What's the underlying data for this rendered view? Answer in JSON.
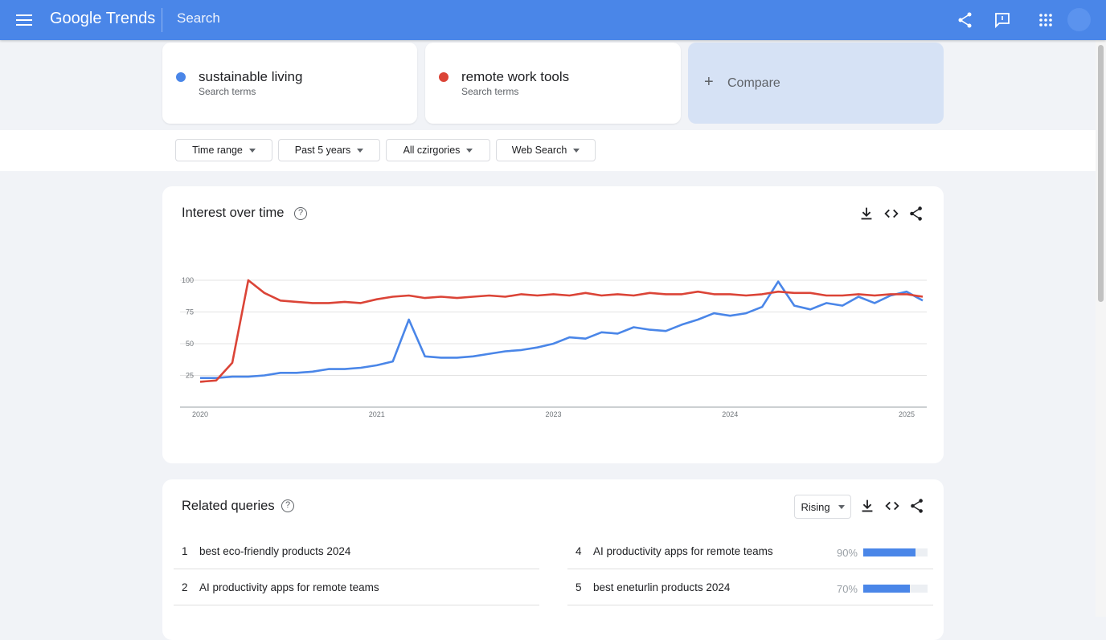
{
  "header": {
    "brand": "Google Trends",
    "search_label": "Search"
  },
  "terms": [
    {
      "name": "sustainable living",
      "sub": "Search terms",
      "color": "#4a86e8"
    },
    {
      "name": "remote work tools",
      "sub": "Search terms",
      "color": "#db4437"
    }
  ],
  "compare_label": "Compare",
  "filters": [
    "Time range",
    "Past 5 years",
    "All czirgories",
    "Web Search"
  ],
  "interest": {
    "title": "Interest over time",
    "help": "?"
  },
  "chart_data": {
    "type": "line",
    "ylim": [
      0,
      100
    ],
    "yticks": [
      25,
      50,
      75,
      100
    ],
    "xticks": [
      {
        "at": 0,
        "label": "2020"
      },
      {
        "at": 11,
        "label": "2021"
      },
      {
        "at": 22,
        "label": "2023"
      },
      {
        "at": 33,
        "label": "2024"
      },
      {
        "at": 44,
        "label": "2025"
      }
    ],
    "grid": true,
    "series": [
      {
        "color": "#4a86e8",
        "values": [
          23,
          23,
          24,
          24,
          25,
          27,
          27,
          28,
          30,
          30,
          31,
          33,
          36,
          69,
          40,
          39,
          39,
          40,
          42,
          44,
          45,
          47,
          50,
          55,
          54,
          59,
          58,
          63,
          61,
          60,
          65,
          69,
          74,
          72,
          74,
          79,
          99,
          80,
          77,
          82,
          80,
          87,
          82,
          88,
          91,
          84
        ]
      },
      {
        "color": "#db4437",
        "values": [
          20,
          21,
          35,
          100,
          90,
          84,
          83,
          82,
          82,
          83,
          82,
          85,
          87,
          88,
          86,
          87,
          86,
          87,
          88,
          87,
          89,
          88,
          89,
          88,
          90,
          88,
          89,
          88,
          90,
          89,
          89,
          91,
          89,
          89,
          88,
          89,
          91,
          90,
          90,
          88,
          88,
          89,
          88,
          89,
          89,
          87
        ]
      }
    ]
  },
  "related": {
    "title": "Related queries",
    "help": "?",
    "mode": "Rising",
    "left": [
      {
        "rank": "1",
        "query": "best eco-friendly products 2024"
      },
      {
        "rank": "2",
        "query": "AI productivity apps for remote teams"
      }
    ],
    "right": [
      {
        "rank": "4",
        "query": "AI productivity apps for remote teams",
        "pct": "90%",
        "value": 81
      },
      {
        "rank": "5",
        "query": "best eneturlin products 2024",
        "pct": "70%",
        "value": 72
      }
    ]
  }
}
